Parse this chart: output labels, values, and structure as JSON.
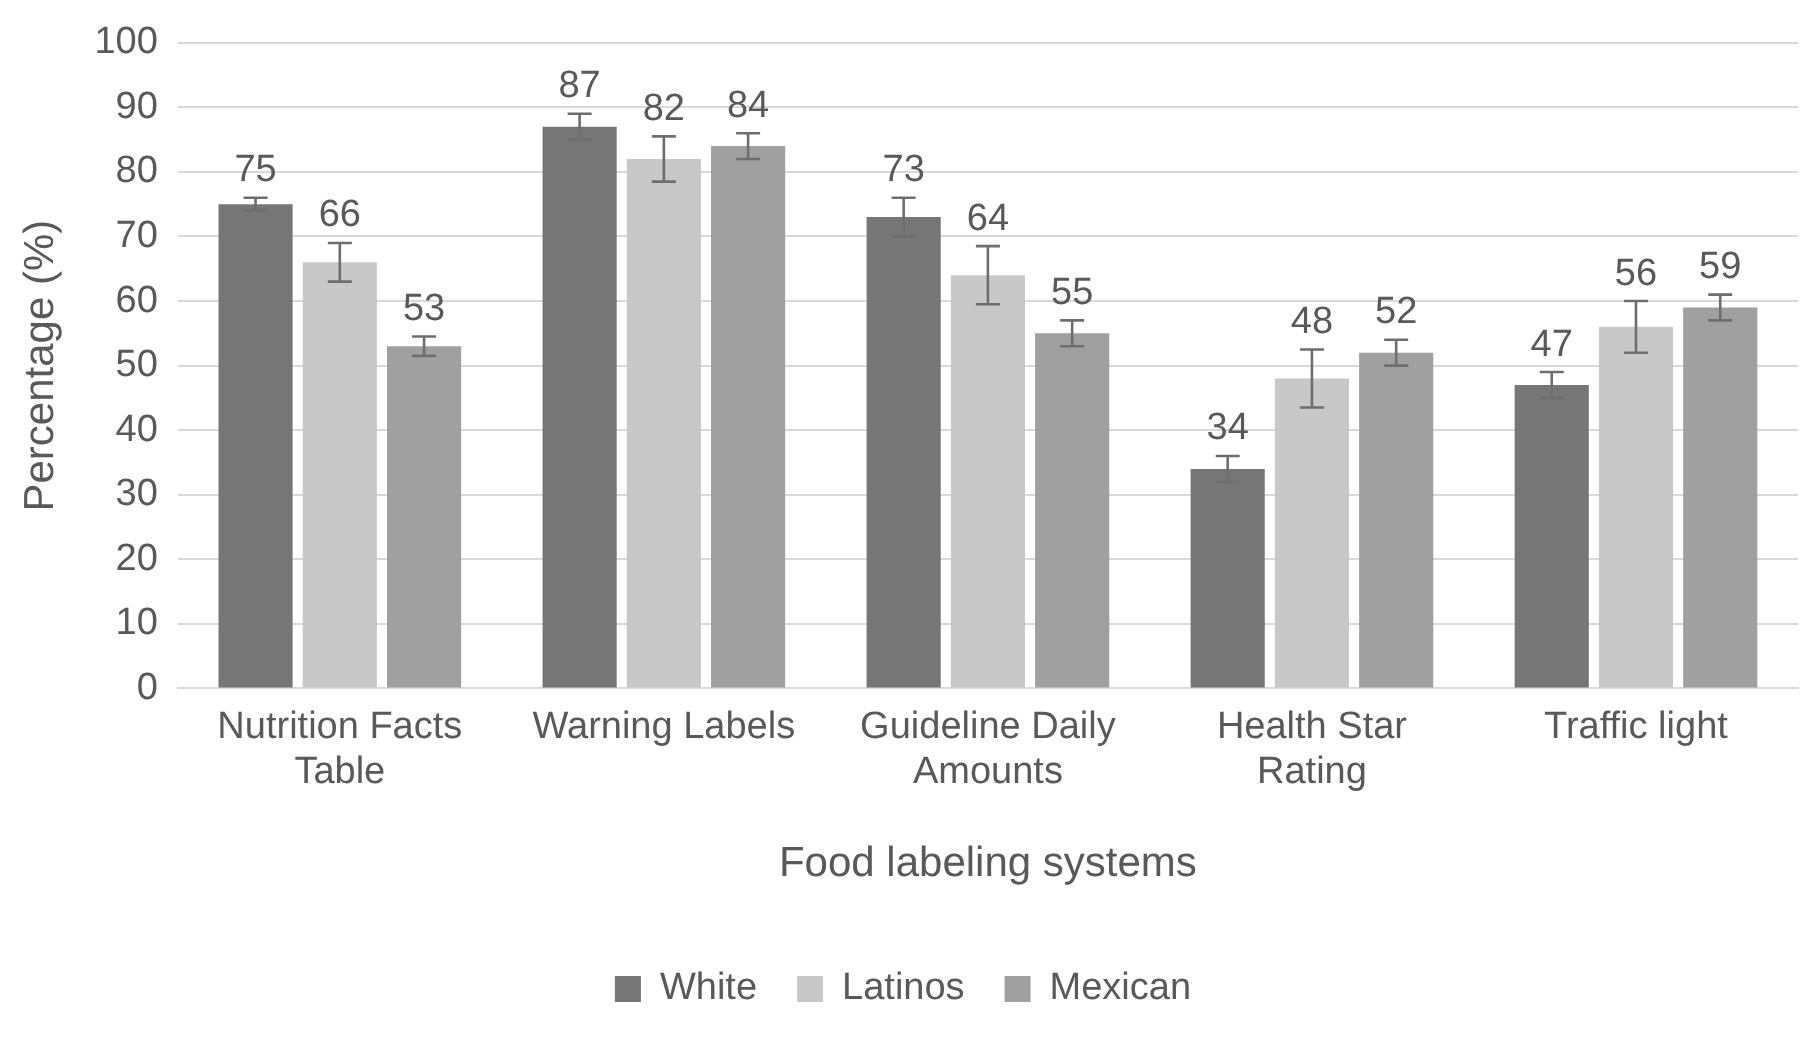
{
  "chart_data": {
    "type": "bar",
    "xlabel": "Food labeling systems",
    "ylabel": "Percentage (%)",
    "categories": [
      "Nutrition Facts Table",
      "Warning Labels",
      "Guideline Daily Amounts",
      "Health Star Rating",
      "Traffic light"
    ],
    "series": [
      {
        "name": "White",
        "color": "#767676",
        "values": [
          75,
          87,
          73,
          34,
          47
        ],
        "errors": [
          1,
          2,
          3,
          2,
          2
        ]
      },
      {
        "name": "Latinos",
        "color": "#c8c8c8",
        "values": [
          66,
          82,
          64,
          48,
          56
        ],
        "errors": [
          3,
          3.5,
          4.5,
          4.5,
          4
        ]
      },
      {
        "name": "Mexican",
        "color": "#a0a0a0",
        "values": [
          53,
          84,
          55,
          52,
          59
        ],
        "errors": [
          1.5,
          2,
          2,
          2,
          2
        ]
      }
    ],
    "ylim": [
      0,
      100
    ],
    "yticks": [
      0,
      10,
      20,
      30,
      40,
      50,
      60,
      70,
      80,
      90,
      100
    ],
    "grid": "y",
    "legend": "bottom",
    "data_labels": true
  }
}
